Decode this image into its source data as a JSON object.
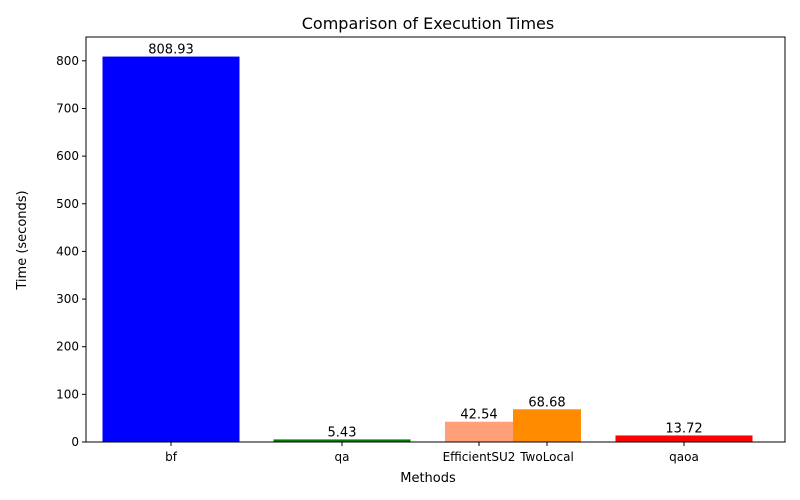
{
  "chart_data": {
    "type": "bar",
    "title": "Comparison of Execution Times",
    "xlabel": "Methods",
    "ylabel": "Time (seconds)",
    "ylim": [
      0,
      850
    ],
    "yticks": [
      0,
      100,
      200,
      300,
      400,
      500,
      600,
      700,
      800
    ],
    "grid": false,
    "bars": [
      {
        "category": "bf",
        "label": "808.93",
        "value": 808.93,
        "color": "#0000ff"
      },
      {
        "category": "qa",
        "label": "5.43",
        "value": 5.43,
        "color": "#008000"
      },
      {
        "category": "EfficientSU2",
        "label": "42.54",
        "value": 42.54,
        "color": "#ffa07a"
      },
      {
        "category": "TwoLocal",
        "label": "68.68",
        "value": 68.68,
        "color": "#ff8c00"
      },
      {
        "category": "qaoa",
        "label": "13.72",
        "value": 13.72,
        "color": "#ff0000"
      }
    ]
  }
}
